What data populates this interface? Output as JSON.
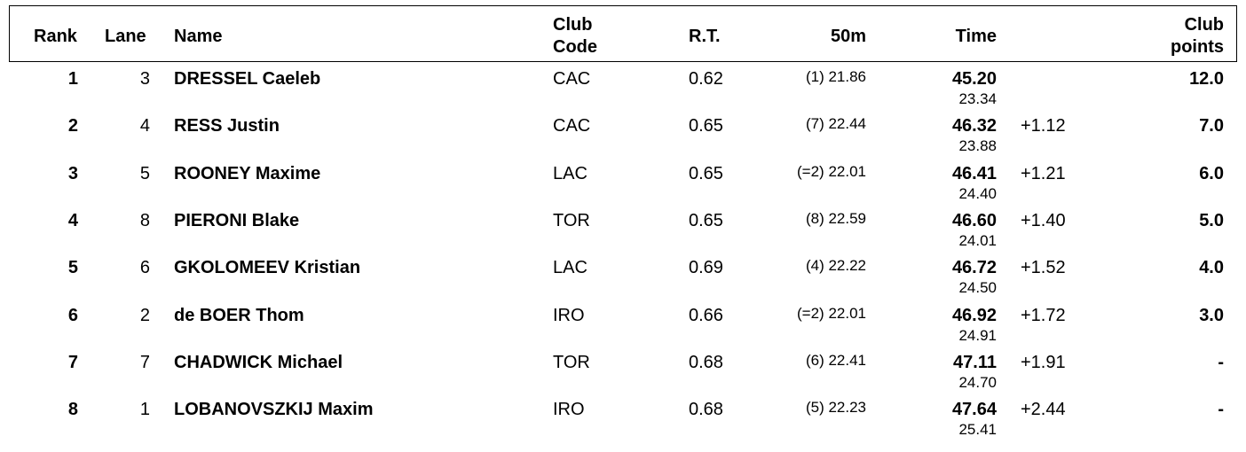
{
  "headers": {
    "rank": "Rank",
    "lane": "Lane",
    "name": "Name",
    "club_code_1": "Club",
    "club_code_2": "Code",
    "rt": "R.T.",
    "split": "50m",
    "time": "Time",
    "club_points_1": "Club",
    "club_points_2": "points"
  },
  "rows": [
    {
      "rank": "1",
      "lane": "3",
      "name": "DRESSEL Caeleb",
      "club": "CAC",
      "rt": "0.62",
      "split": "(1) 21.86",
      "time": "45.20",
      "split_time": "23.34",
      "behind": "",
      "points": "12.0"
    },
    {
      "rank": "2",
      "lane": "4",
      "name": "RESS Justin",
      "club": "CAC",
      "rt": "0.65",
      "split": "(7) 22.44",
      "time": "46.32",
      "split_time": "23.88",
      "behind": "+1.12",
      "points": "7.0"
    },
    {
      "rank": "3",
      "lane": "5",
      "name": "ROONEY Maxime",
      "club": "LAC",
      "rt": "0.65",
      "split": "(=2) 22.01",
      "time": "46.41",
      "split_time": "24.40",
      "behind": "+1.21",
      "points": "6.0"
    },
    {
      "rank": "4",
      "lane": "8",
      "name": "PIERONI Blake",
      "club": "TOR",
      "rt": "0.65",
      "split": "(8) 22.59",
      "time": "46.60",
      "split_time": "24.01",
      "behind": "+1.40",
      "points": "5.0"
    },
    {
      "rank": "5",
      "lane": "6",
      "name": "GKOLOMEEV Kristian",
      "club": "LAC",
      "rt": "0.69",
      "split": "(4) 22.22",
      "time": "46.72",
      "split_time": "24.50",
      "behind": "+1.52",
      "points": "4.0"
    },
    {
      "rank": "6",
      "lane": "2",
      "name": "de BOER Thom",
      "club": "IRO",
      "rt": "0.66",
      "split": "(=2) 22.01",
      "time": "46.92",
      "split_time": "24.91",
      "behind": "+1.72",
      "points": "3.0"
    },
    {
      "rank": "7",
      "lane": "7",
      "name": "CHADWICK Michael",
      "club": "TOR",
      "rt": "0.68",
      "split": "(6) 22.41",
      "time": "47.11",
      "split_time": "24.70",
      "behind": "+1.91",
      "points": "-"
    },
    {
      "rank": "8",
      "lane": "1",
      "name": "LOBANOVSZKIJ Maxim",
      "club": "IRO",
      "rt": "0.68",
      "split": "(5) 22.23",
      "time": "47.64",
      "split_time": "25.41",
      "behind": "+2.44",
      "points": "-"
    }
  ]
}
